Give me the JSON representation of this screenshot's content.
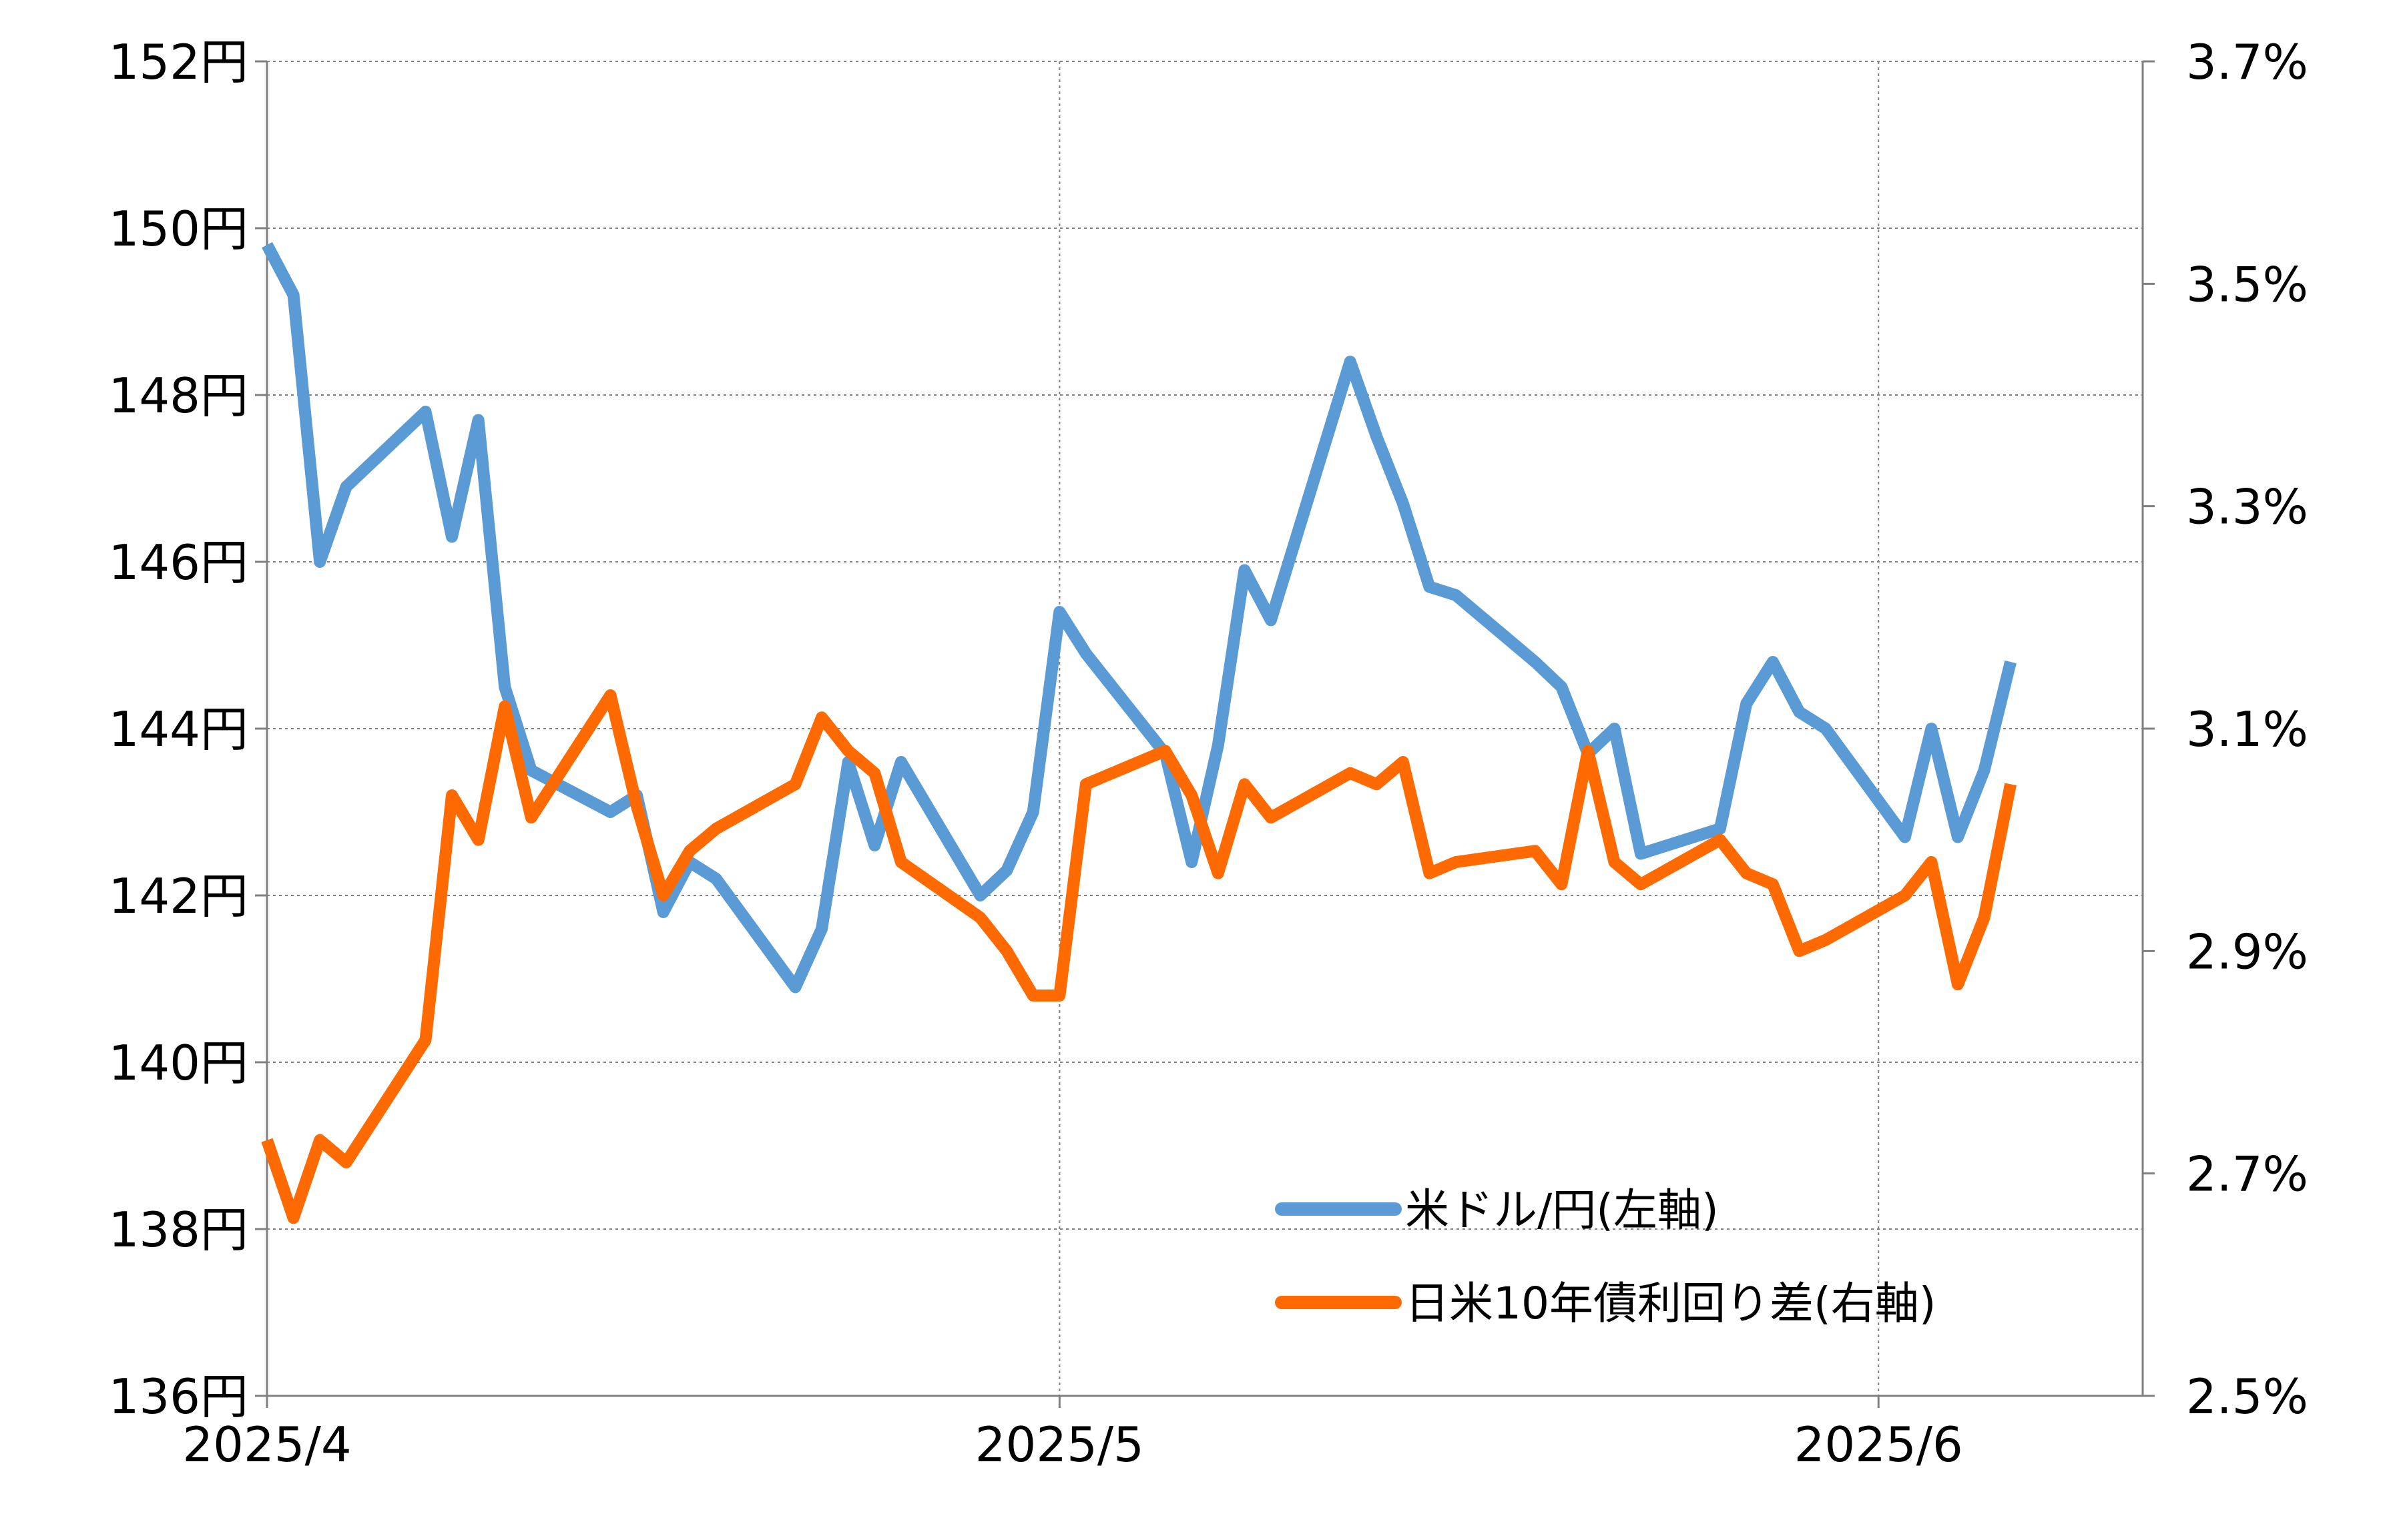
{
  "colors": {
    "usd_jpy": "#5B9BD5",
    "spread": "#FF6A00",
    "grid": "#808080",
    "axis": "#808080",
    "background": "#FFFFFF"
  },
  "legend": {
    "usd_jpy_label": "米ドル/円(左軸)",
    "spread_label": "日米10年債利回り差(右軸)"
  },
  "chart_data": {
    "type": "line",
    "title": "",
    "grid": true,
    "legend_position": "bottom-right",
    "x_ticks": [
      {
        "label": "2025/4",
        "date": "2025-04-01"
      },
      {
        "label": "2025/5",
        "date": "2025-05-01"
      },
      {
        "label": "2025/6",
        "date": "2025-06-01"
      }
    ],
    "x_range": [
      "2025-04-01",
      "2025-06-11"
    ],
    "y_left": {
      "min": 136,
      "max": 152,
      "ticks": [
        {
          "value": 136,
          "label": "136円"
        },
        {
          "value": 138,
          "label": "138円"
        },
        {
          "value": 140,
          "label": "140円"
        },
        {
          "value": 142,
          "label": "142円"
        },
        {
          "value": 144,
          "label": "144円"
        },
        {
          "value": 146,
          "label": "146円"
        },
        {
          "value": 148,
          "label": "148円"
        },
        {
          "value": 150,
          "label": "150円"
        },
        {
          "value": 152,
          "label": "152円"
        }
      ]
    },
    "y_right": {
      "min": 2.5,
      "max": 3.7,
      "ticks": [
        {
          "value": 2.5,
          "label": "2.5%"
        },
        {
          "value": 2.7,
          "label": "2.7%"
        },
        {
          "value": 2.9,
          "label": "2.9%"
        },
        {
          "value": 3.1,
          "label": "3.1%"
        },
        {
          "value": 3.3,
          "label": "3.3%"
        },
        {
          "value": 3.5,
          "label": "3.5%"
        },
        {
          "value": 3.7,
          "label": "3.7%"
        }
      ]
    },
    "series": [
      {
        "name": "米ドル/円(左軸)",
        "axis": "left",
        "points": [
          [
            "2025-04-01",
            149.8
          ],
          [
            "2025-04-02",
            149.2
          ],
          [
            "2025-04-03",
            146.0
          ],
          [
            "2025-04-04",
            146.9
          ],
          [
            "2025-04-07",
            147.8
          ],
          [
            "2025-04-08",
            146.3
          ],
          [
            "2025-04-09",
            147.7
          ],
          [
            "2025-04-10",
            144.5
          ],
          [
            "2025-04-11",
            143.5
          ],
          [
            "2025-04-14",
            143.0
          ],
          [
            "2025-04-15",
            143.2
          ],
          [
            "2025-04-16",
            141.8
          ],
          [
            "2025-04-17",
            142.4
          ],
          [
            "2025-04-18",
            142.2
          ],
          [
            "2025-04-21",
            140.9
          ],
          [
            "2025-04-22",
            141.6
          ],
          [
            "2025-04-23",
            143.6
          ],
          [
            "2025-04-24",
            142.6
          ],
          [
            "2025-04-25",
            143.6
          ],
          [
            "2025-04-28",
            142.0
          ],
          [
            "2025-04-29",
            142.3
          ],
          [
            "2025-04-30",
            143.0
          ],
          [
            "2025-05-01",
            145.4
          ],
          [
            "2025-05-02",
            144.9
          ],
          [
            "2025-05-05",
            143.7
          ],
          [
            "2025-05-06",
            142.4
          ],
          [
            "2025-05-07",
            143.8
          ],
          [
            "2025-05-08",
            145.9
          ],
          [
            "2025-05-09",
            145.3
          ],
          [
            "2025-05-12",
            148.4
          ],
          [
            "2025-05-13",
            147.5
          ],
          [
            "2025-05-14",
            146.7
          ],
          [
            "2025-05-15",
            145.7
          ],
          [
            "2025-05-16",
            145.6
          ],
          [
            "2025-05-19",
            144.8
          ],
          [
            "2025-05-20",
            144.5
          ],
          [
            "2025-05-21",
            143.7
          ],
          [
            "2025-05-22",
            144.0
          ],
          [
            "2025-05-23",
            142.5
          ],
          [
            "2025-05-26",
            142.8
          ],
          [
            "2025-05-27",
            144.3
          ],
          [
            "2025-05-28",
            144.8
          ],
          [
            "2025-05-29",
            144.2
          ],
          [
            "2025-05-30",
            144.0
          ],
          [
            "2025-06-02",
            142.7
          ],
          [
            "2025-06-03",
            144.0
          ],
          [
            "2025-06-04",
            142.7
          ],
          [
            "2025-06-05",
            143.5
          ],
          [
            "2025-06-06",
            144.8
          ]
        ]
      },
      {
        "name": "日米10年債利回り差(右軸)",
        "axis": "right",
        "points": [
          [
            "2025-04-01",
            2.73
          ],
          [
            "2025-04-02",
            2.66
          ],
          [
            "2025-04-03",
            2.73
          ],
          [
            "2025-04-04",
            2.71
          ],
          [
            "2025-04-07",
            2.82
          ],
          [
            "2025-04-08",
            3.04
          ],
          [
            "2025-04-09",
            3.0
          ],
          [
            "2025-04-10",
            3.12
          ],
          [
            "2025-04-11",
            3.02
          ],
          [
            "2025-04-14",
            3.13
          ],
          [
            "2025-04-15",
            3.03
          ],
          [
            "2025-04-16",
            2.95
          ],
          [
            "2025-04-17",
            2.99
          ],
          [
            "2025-04-18",
            3.01
          ],
          [
            "2025-04-21",
            3.05
          ],
          [
            "2025-04-22",
            3.11
          ],
          [
            "2025-04-23",
            3.08
          ],
          [
            "2025-04-24",
            3.06
          ],
          [
            "2025-04-25",
            2.98
          ],
          [
            "2025-04-28",
            2.93
          ],
          [
            "2025-04-29",
            2.9
          ],
          [
            "2025-04-30",
            2.86
          ],
          [
            "2025-05-01",
            2.86
          ],
          [
            "2025-05-02",
            3.05
          ],
          [
            "2025-05-05",
            3.08
          ],
          [
            "2025-05-06",
            3.04
          ],
          [
            "2025-05-07",
            2.97
          ],
          [
            "2025-05-08",
            3.05
          ],
          [
            "2025-05-09",
            3.02
          ],
          [
            "2025-05-12",
            3.06
          ],
          [
            "2025-05-13",
            3.05
          ],
          [
            "2025-05-14",
            3.07
          ],
          [
            "2025-05-15",
            2.97
          ],
          [
            "2025-05-16",
            2.98
          ],
          [
            "2025-05-19",
            2.99
          ],
          [
            "2025-05-20",
            2.96
          ],
          [
            "2025-05-21",
            3.08
          ],
          [
            "2025-05-22",
            2.98
          ],
          [
            "2025-05-23",
            2.96
          ],
          [
            "2025-05-26",
            3.0
          ],
          [
            "2025-05-27",
            2.97
          ],
          [
            "2025-05-28",
            2.96
          ],
          [
            "2025-05-29",
            2.9
          ],
          [
            "2025-05-30",
            2.91
          ],
          [
            "2025-06-02",
            2.95
          ],
          [
            "2025-06-03",
            2.98
          ],
          [
            "2025-06-04",
            2.87
          ],
          [
            "2025-06-05",
            2.93
          ],
          [
            "2025-06-06",
            3.05
          ]
        ]
      }
    ]
  }
}
